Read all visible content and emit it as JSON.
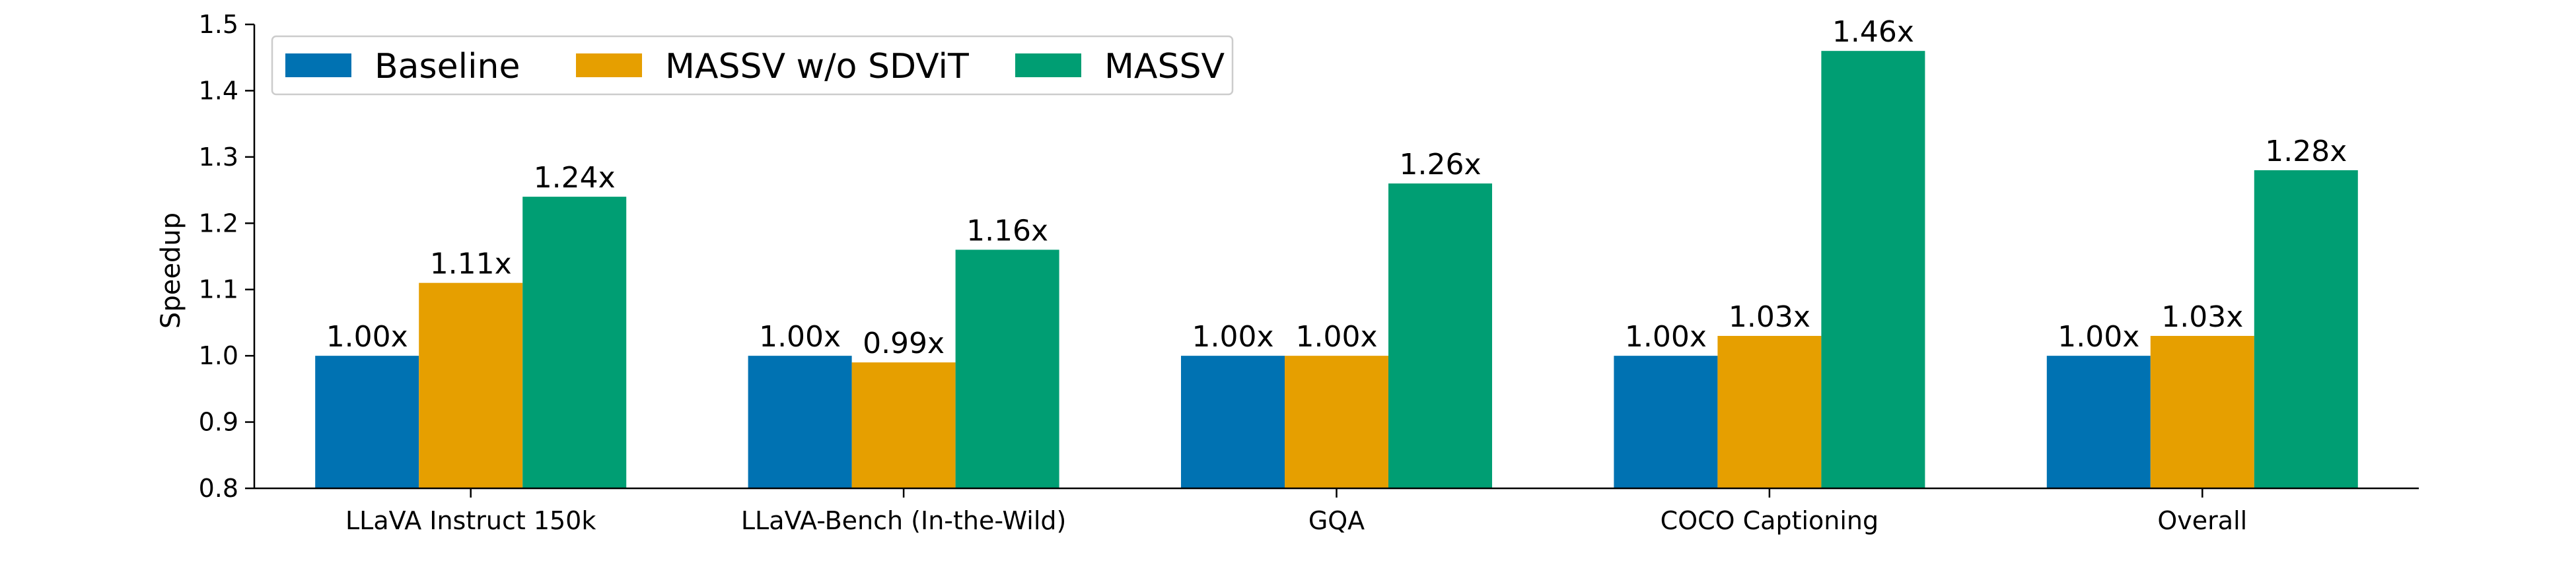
{
  "chart_data": {
    "type": "bar",
    "title": "",
    "xlabel": "",
    "ylabel": "Speedup",
    "ylim": [
      0.8,
      1.5
    ],
    "yticks": [
      "0.8",
      "0.9",
      "1.0",
      "1.1",
      "1.2",
      "1.3",
      "1.4",
      "1.5"
    ],
    "grid": false,
    "legend_position": "top-left",
    "categories": [
      "LLaVA Instruct 150k",
      "LLaVA-Bench (In-the-Wild)",
      "GQA",
      "COCO Captioning",
      "Overall"
    ],
    "series": [
      {
        "name": "Baseline",
        "color": "#0072B2",
        "values": [
          1.0,
          1.0,
          1.0,
          1.0,
          1.0
        ],
        "labels": [
          "1.00x",
          "1.00x",
          "1.00x",
          "1.00x",
          "1.00x"
        ]
      },
      {
        "name": "MASSV w/o SDViT",
        "color": "#E69F00",
        "values": [
          1.11,
          0.99,
          1.0,
          1.03,
          1.03
        ],
        "labels": [
          "1.11x",
          "0.99x",
          "1.00x",
          "1.03x",
          "1.03x"
        ]
      },
      {
        "name": "MASSV",
        "color": "#009E73",
        "values": [
          1.24,
          1.16,
          1.26,
          1.46,
          1.28
        ],
        "labels": [
          "1.24x",
          "1.16x",
          "1.26x",
          "1.46x",
          "1.28x"
        ]
      }
    ]
  }
}
